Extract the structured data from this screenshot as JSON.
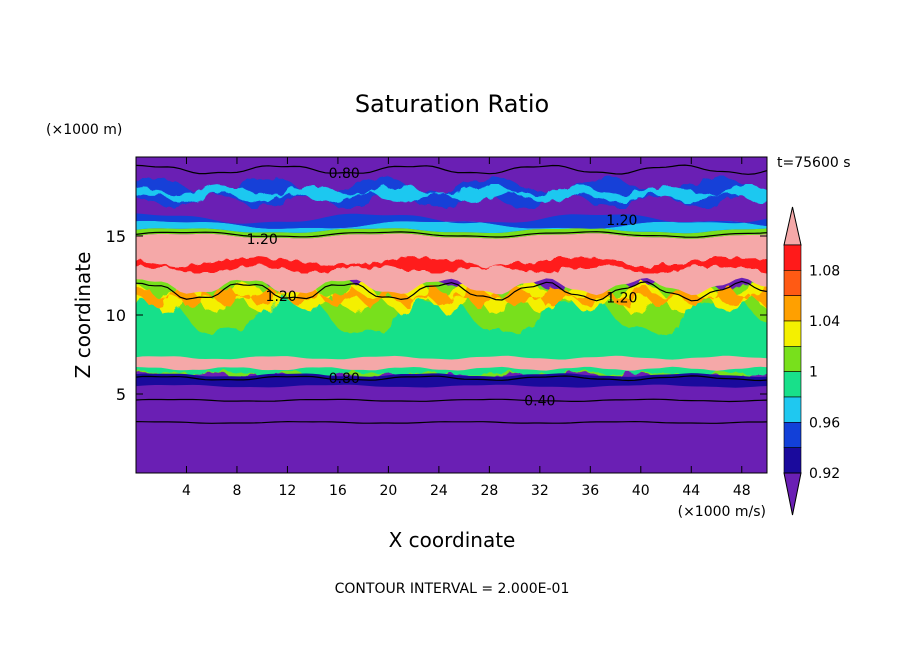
{
  "chart_data": {
    "type": "heatmap",
    "title": "Saturation Ratio",
    "xlabel": "X coordinate",
    "ylabel": "Z coordinate",
    "x_unit": "(×1000 m/s)",
    "y_unit": "(×1000 m)",
    "time_label": "t=75600 s",
    "footer": "CONTOUR INTERVAL = 2.000E-01",
    "xlim": [
      0,
      50
    ],
    "ylim": [
      0,
      20
    ],
    "x_ticks": [
      4,
      8,
      12,
      16,
      20,
      24,
      28,
      32,
      36,
      40,
      44,
      48
    ],
    "y_ticks": [
      5,
      10,
      15
    ],
    "colorbar": {
      "levels": [
        0.92,
        0.94,
        0.96,
        0.98,
        1.0,
        1.02,
        1.04,
        1.06,
        1.08,
        1.1
      ],
      "colors": [
        "#6a1fb4",
        "#1a0a9c",
        "#1240d8",
        "#1fc8f0",
        "#18e08a",
        "#78e01c",
        "#f4f000",
        "#ffa000",
        "#ff5a14",
        "#ff1a1a",
        "#f5a8a8"
      ],
      "labels": [
        "0.92",
        "0.96",
        "1",
        "1.04",
        "1.08"
      ],
      "extend": "both"
    },
    "contour_labels": [
      {
        "text": "0.80",
        "x": 16.5,
        "y": 19.0
      },
      {
        "text": "1.20",
        "x": 38.5,
        "y": 16.0
      },
      {
        "text": "1.20",
        "x": 10.0,
        "y": 14.8
      },
      {
        "text": "1.20",
        "x": 11.5,
        "y": 11.2
      },
      {
        "text": "1.20",
        "x": 38.5,
        "y": 11.1
      },
      {
        "text": "0.80",
        "x": 16.5,
        "y": 6.0
      },
      {
        "text": "0.40",
        "x": 32.0,
        "y": 4.6
      }
    ],
    "regions_description": {
      "z_0_to_6": "below 0.92 (deep purple)",
      "z_6_to_12": "mixed 0.94-1.10 (convective cloud layer)",
      "z_12_to_15": "above 1.10 (pink)",
      "z_15_to_20": "below 0.92 with patches 0.94-0.98"
    }
  }
}
